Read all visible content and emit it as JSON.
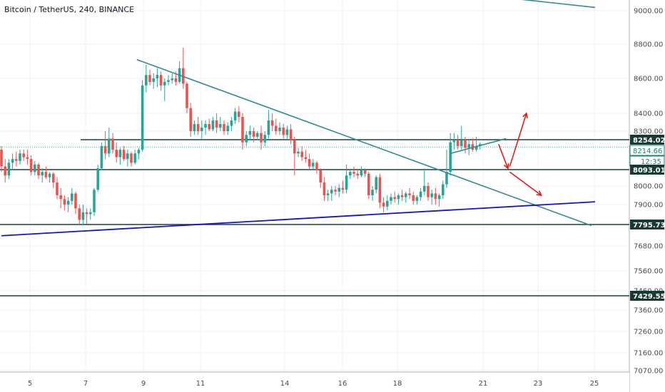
{
  "header": {
    "title": "Bitcoin / TetherUS, 240, BINANCE"
  },
  "colors": {
    "up": "#26a69a",
    "down": "#ef5350",
    "trend": "#2e8a98",
    "support_blue": "#1414d2",
    "level": "#1f3f3a",
    "arrow": "#e31b1b",
    "grid": "#eef1f5",
    "axis_text": "#4a4a4a",
    "tag_bg": "#163b35",
    "tag_teal": "#1b7f70",
    "dotted": "#26a69a"
  },
  "chart_data": {
    "type": "candlestick",
    "title": "Bitcoin / TetherUS, 240, BINANCE",
    "ylim": [
      6990,
      9150
    ],
    "y_ticks": [
      "9000.00",
      "8800.00",
      "8600.00",
      "8400.00",
      "8300.00",
      "8000.00",
      "7900.00",
      "7680.00",
      "7560.00",
      "7460.00",
      "7360.00",
      "7260.00",
      "7160.00",
      "7070.00"
    ],
    "x_ticks": [
      "5",
      "7",
      "9",
      "11",
      "14",
      "16",
      "18",
      "21",
      "23",
      "25"
    ],
    "price_tags": [
      {
        "label": "8254.02",
        "value": 8254.02,
        "style": "level"
      },
      {
        "label": "8214.66",
        "value": 8214.66,
        "style": "current"
      },
      {
        "label": "12:35",
        "value": 8165,
        "style": "countdown"
      },
      {
        "label": "8093.01",
        "value": 8093.01,
        "style": "level"
      },
      {
        "label": "7795.73",
        "value": 7795.73,
        "style": "level"
      },
      {
        "label": "7429.55",
        "value": 7429.55,
        "style": "level"
      }
    ],
    "horizontal_levels": [
      8254.02,
      8093.01,
      7795.73,
      7429.55
    ],
    "candles": [
      [
        0,
        8200,
        8220,
        8080,
        8110
      ],
      [
        1,
        8110,
        8150,
        8020,
        8060
      ],
      [
        2,
        8060,
        8150,
        8040,
        8130
      ],
      [
        3,
        8130,
        8180,
        8090,
        8150
      ],
      [
        4,
        8150,
        8190,
        8110,
        8140
      ],
      [
        5,
        8140,
        8200,
        8120,
        8180
      ],
      [
        6,
        8180,
        8200,
        8140,
        8160
      ],
      [
        7,
        8160,
        8200,
        8120,
        8150
      ],
      [
        8,
        8150,
        8170,
        8060,
        8080
      ],
      [
        9,
        8080,
        8140,
        8060,
        8120
      ],
      [
        10,
        8120,
        8130,
        8040,
        8060
      ],
      [
        11,
        8060,
        8100,
        8020,
        8080
      ],
      [
        12,
        8080,
        8110,
        8040,
        8050
      ],
      [
        13,
        8050,
        8080,
        8020,
        8070
      ],
      [
        14,
        8070,
        8080,
        7990,
        8020
      ],
      [
        15,
        8020,
        8050,
        7930,
        7950
      ],
      [
        16,
        7950,
        7990,
        7880,
        7930
      ],
      [
        17,
        7930,
        7950,
        7870,
        7900
      ],
      [
        18,
        7900,
        7940,
        7860,
        7920
      ],
      [
        19,
        7920,
        7990,
        7900,
        7960
      ],
      [
        20,
        7960,
        7970,
        7850,
        7880
      ],
      [
        21,
        7880,
        7900,
        7790,
        7820
      ],
      [
        22,
        7820,
        7900,
        7790,
        7860
      ],
      [
        23,
        7860,
        7880,
        7800,
        7850
      ],
      [
        24,
        7850,
        7880,
        7820,
        7860
      ],
      [
        25,
        7860,
        7990,
        7840,
        7980
      ],
      [
        26,
        7980,
        8120,
        7970,
        8100
      ],
      [
        27,
        8100,
        8240,
        8090,
        8220
      ],
      [
        28,
        8220,
        8300,
        8150,
        8180
      ],
      [
        29,
        8180,
        8320,
        8160,
        8260
      ],
      [
        30,
        8260,
        8290,
        8180,
        8200
      ],
      [
        31,
        8200,
        8240,
        8130,
        8160
      ],
      [
        32,
        8160,
        8210,
        8120,
        8200
      ],
      [
        33,
        8200,
        8220,
        8140,
        8150
      ],
      [
        34,
        8150,
        8200,
        8110,
        8180
      ],
      [
        35,
        8180,
        8190,
        8110,
        8130
      ],
      [
        36,
        8130,
        8200,
        8120,
        8180
      ],
      [
        37,
        8180,
        8210,
        8150,
        8200
      ],
      [
        38,
        8200,
        8590,
        8190,
        8560
      ],
      [
        39,
        8560,
        8680,
        8520,
        8620
      ],
      [
        40,
        8620,
        8650,
        8560,
        8580
      ],
      [
        41,
        8580,
        8630,
        8540,
        8600
      ],
      [
        42,
        8600,
        8660,
        8550,
        8620
      ],
      [
        43,
        8620,
        8640,
        8530,
        8560
      ],
      [
        44,
        8560,
        8600,
        8470,
        8580
      ],
      [
        45,
        8580,
        8620,
        8560,
        8590
      ],
      [
        46,
        8590,
        8630,
        8570,
        8600
      ],
      [
        47,
        8600,
        8640,
        8560,
        8580
      ],
      [
        48,
        8580,
        8700,
        8570,
        8660
      ],
      [
        49,
        8660,
        8780,
        8540,
        8570
      ],
      [
        50,
        8570,
        8580,
        8400,
        8430
      ],
      [
        51,
        8430,
        8460,
        8270,
        8300
      ],
      [
        52,
        8300,
        8360,
        8280,
        8340
      ],
      [
        53,
        8340,
        8380,
        8280,
        8300
      ],
      [
        54,
        8300,
        8360,
        8260,
        8320
      ],
      [
        55,
        8320,
        8360,
        8280,
        8340
      ],
      [
        56,
        8340,
        8370,
        8300,
        8310
      ],
      [
        57,
        8310,
        8380,
        8300,
        8360
      ],
      [
        58,
        8360,
        8400,
        8290,
        8320
      ],
      [
        59,
        8320,
        8380,
        8300,
        8340
      ],
      [
        60,
        8340,
        8360,
        8280,
        8300
      ],
      [
        61,
        8300,
        8350,
        8280,
        8330
      ],
      [
        62,
        8330,
        8380,
        8300,
        8360
      ],
      [
        63,
        8360,
        8430,
        8340,
        8410
      ],
      [
        64,
        8410,
        8440,
        8350,
        8380
      ],
      [
        65,
        8380,
        8400,
        8200,
        8240
      ],
      [
        66,
        8240,
        8300,
        8220,
        8280
      ],
      [
        67,
        8280,
        8330,
        8250,
        8300
      ],
      [
        68,
        8300,
        8320,
        8240,
        8270
      ],
      [
        69,
        8270,
        8300,
        8250,
        8290
      ],
      [
        70,
        8290,
        8330,
        8200,
        8240
      ],
      [
        71,
        8240,
        8300,
        8220,
        8280
      ],
      [
        72,
        8280,
        8420,
        8260,
        8360
      ],
      [
        73,
        8360,
        8400,
        8300,
        8330
      ],
      [
        74,
        8330,
        8370,
        8280,
        8300
      ],
      [
        75,
        8300,
        8350,
        8280,
        8320
      ],
      [
        76,
        8320,
        8340,
        8260,
        8280
      ],
      [
        77,
        8280,
        8330,
        8260,
        8310
      ],
      [
        78,
        8310,
        8340,
        8230,
        8250
      ],
      [
        79,
        8250,
        8270,
        8060,
        8180
      ],
      [
        80,
        8180,
        8210,
        8160,
        8190
      ],
      [
        81,
        8190,
        8220,
        8140,
        8160
      ],
      [
        82,
        8160,
        8200,
        8130,
        8150
      ],
      [
        83,
        8150,
        8180,
        8090,
        8110
      ],
      [
        84,
        8110,
        8150,
        8090,
        8130
      ],
      [
        85,
        8130,
        8140,
        8070,
        8090
      ],
      [
        86,
        8090,
        8100,
        7990,
        8020
      ],
      [
        87,
        8020,
        8050,
        7920,
        7950
      ],
      [
        88,
        7950,
        7980,
        7920,
        7960
      ],
      [
        89,
        7960,
        8000,
        7920,
        7980
      ],
      [
        90,
        7980,
        8000,
        7950,
        7970
      ],
      [
        91,
        7970,
        8010,
        7940,
        7990
      ],
      [
        92,
        7990,
        8030,
        7960,
        7980
      ],
      [
        93,
        7980,
        8120,
        7960,
        8060
      ],
      [
        94,
        8060,
        8090,
        8040,
        8080
      ],
      [
        95,
        8080,
        8110,
        8050,
        8070
      ],
      [
        96,
        8070,
        8090,
        8040,
        8060
      ],
      [
        97,
        8060,
        8110,
        8050,
        8090
      ],
      [
        98,
        8090,
        8100,
        8050,
        8070
      ],
      [
        99,
        8070,
        8080,
        7930,
        7950
      ],
      [
        100,
        7950,
        8000,
        7920,
        7980
      ],
      [
        101,
        7980,
        8060,
        7960,
        8050
      ],
      [
        102,
        8050,
        8070,
        7880,
        7910
      ],
      [
        103,
        7910,
        7940,
        7860,
        7890
      ],
      [
        104,
        7890,
        7950,
        7870,
        7920
      ],
      [
        105,
        7920,
        7960,
        7900,
        7940
      ],
      [
        106,
        7940,
        7970,
        7910,
        7930
      ],
      [
        107,
        7930,
        7960,
        7900,
        7950
      ],
      [
        108,
        7950,
        7980,
        7920,
        7940
      ],
      [
        109,
        7940,
        7970,
        7910,
        7960
      ],
      [
        110,
        7960,
        7990,
        7930,
        7950
      ],
      [
        111,
        7950,
        7970,
        7900,
        7920
      ],
      [
        112,
        7920,
        7950,
        7900,
        7940
      ],
      [
        113,
        7940,
        7990,
        7920,
        7970
      ],
      [
        114,
        7970,
        8100,
        7950,
        8000
      ],
      [
        115,
        8000,
        8020,
        7920,
        7940
      ],
      [
        116,
        7940,
        7980,
        7900,
        7960
      ],
      [
        117,
        7960,
        7990,
        7900,
        7930
      ],
      [
        118,
        7930,
        7960,
        7890,
        7950
      ],
      [
        119,
        7950,
        8030,
        7930,
        8010
      ],
      [
        120,
        8010,
        8200,
        7990,
        8080
      ],
      [
        121,
        8080,
        8290,
        8060,
        8240
      ],
      [
        122,
        8240,
        8290,
        8200,
        8250
      ],
      [
        123,
        8250,
        8280,
        8200,
        8220
      ],
      [
        124,
        8220,
        8330,
        8200,
        8250
      ],
      [
        125,
        8250,
        8270,
        8180,
        8210
      ],
      [
        126,
        8210,
        8250,
        8170,
        8230
      ],
      [
        127,
        8230,
        8260,
        8190,
        8200
      ],
      [
        128,
        8200,
        8270,
        8190,
        8220
      ],
      [
        129,
        8220,
        8240,
        8200,
        8230
      ]
    ],
    "annotations": {
      "trendlines": [
        {
          "from": [
            36.5,
            8710
          ],
          "to": [
            159,
            7790
          ],
          "color_key": "trend"
        },
        {
          "from": [
            138,
            9150
          ],
          "to": [
            160,
            9040
          ],
          "color_key": "trend"
        },
        {
          "from": [
            121,
            8180
          ],
          "to": [
            136,
            8260
          ],
          "color_key": "trend"
        },
        {
          "from": [
            0,
            7735
          ],
          "to": [
            160,
            7915
          ],
          "color_key": "support_blue"
        }
      ],
      "arrows": [
        {
          "from": [
            134,
            8230
          ],
          "to": [
            136.5,
            8100
          ]
        },
        {
          "from": [
            137,
            8110
          ],
          "to": [
            141.5,
            8400
          ]
        },
        {
          "from": [
            137,
            8080
          ],
          "to": [
            145.5,
            7950
          ]
        }
      ],
      "dotted_line": 8214.66
    }
  }
}
